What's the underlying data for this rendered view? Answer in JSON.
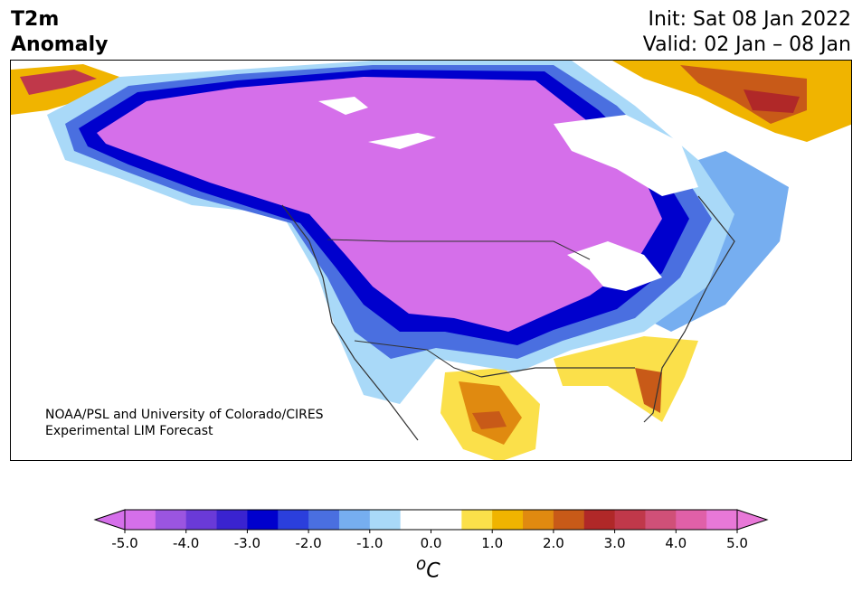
{
  "header": {
    "variable": "T2m",
    "type": "Anomaly",
    "init": "Init: Sat 08 Jan 2022",
    "valid": "Valid: 02 Jan – 08 Jan"
  },
  "credit": {
    "line1": "NOAA/PSL and University of Colorado/CIRES",
    "line2": "Experimental LIM Forecast"
  },
  "colorbar": {
    "unit_super": "o",
    "unit": "C",
    "tick_labels": [
      "-5.0",
      "-4.0",
      "-3.0",
      "-2.0",
      "-1.0",
      "0.0",
      "1.0",
      "2.0",
      "3.0",
      "4.0",
      "5.0"
    ],
    "colors": [
      "#d56fea",
      "#9b55e0",
      "#6a3ad8",
      "#3a23d0",
      "#0000cd",
      "#2b3fdc",
      "#4a6fe0",
      "#76aef0",
      "#a9d9f8",
      "#ffffff",
      "#ffffff",
      "#fbe04a",
      "#f0b400",
      "#e08a10",
      "#c85a18",
      "#b02828",
      "#c0384a",
      "#d05078",
      "#e060a8",
      "#e878d8"
    ],
    "under_color": "#d56fea",
    "over_color": "#e878d8"
  },
  "colors": {
    "purple": "#d56fea",
    "navy": "#0000cd",
    "blue": "#2b3fdc",
    "mid_blue": "#4a6fe0",
    "light_blue": "#76aef0",
    "pale_blue": "#a9d9f8",
    "yellow": "#fbe04a",
    "gold": "#f0b400",
    "orange": "#e08a10",
    "rust": "#c85a18",
    "red": "#b02828",
    "coast": "#333333"
  }
}
